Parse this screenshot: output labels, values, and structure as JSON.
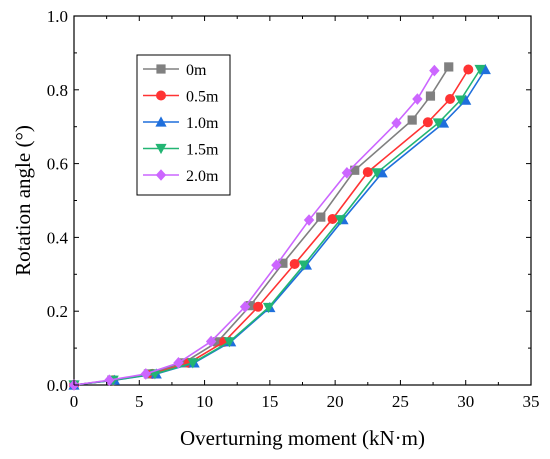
{
  "chart_data": {
    "type": "line",
    "title": "",
    "xlabel": "Overturning moment (kN·m)",
    "ylabel": "Rotation angle (°)",
    "xlim": [
      0,
      35
    ],
    "ylim": [
      0,
      1.0
    ],
    "xticks": [
      0,
      5,
      10,
      15,
      20,
      25,
      30,
      35
    ],
    "yticks": [
      0.0,
      0.2,
      0.4,
      0.6,
      0.8,
      1.0
    ],
    "xtick_labels": [
      "0",
      "5",
      "10",
      "15",
      "20",
      "25",
      "30",
      "35"
    ],
    "ytick_labels": [
      "0.0",
      "0.2",
      "0.4",
      "0.6",
      "0.8",
      "1.0"
    ],
    "grid": false,
    "legend_position": "top-left",
    "series": [
      {
        "name": "0m",
        "color": "#808080",
        "marker": "square",
        "x": [
          0,
          2.9,
          5.7,
          8.4,
          11.0,
          13.5,
          16.0,
          18.9,
          21.5,
          25.9,
          27.3,
          28.7
        ],
        "y": [
          0.0,
          0.013,
          0.03,
          0.06,
          0.117,
          0.215,
          0.33,
          0.455,
          0.582,
          0.718,
          0.783,
          0.862
        ]
      },
      {
        "name": "0.5m",
        "color": "#ff3333",
        "marker": "circle",
        "x": [
          0,
          3.0,
          6.0,
          8.8,
          11.5,
          14.1,
          16.9,
          19.8,
          22.5,
          27.1,
          28.8,
          30.2
        ],
        "y": [
          0.0,
          0.013,
          0.03,
          0.06,
          0.117,
          0.212,
          0.328,
          0.45,
          0.577,
          0.712,
          0.775,
          0.855
        ]
      },
      {
        "name": "1.0m",
        "color": "#1f6fdc",
        "marker": "triangle-up",
        "x": [
          0,
          3.1,
          6.3,
          9.2,
          12.0,
          15.0,
          17.8,
          20.6,
          23.6,
          28.3,
          30.0,
          31.5
        ],
        "y": [
          0.0,
          0.013,
          0.03,
          0.06,
          0.117,
          0.21,
          0.325,
          0.448,
          0.575,
          0.71,
          0.772,
          0.855
        ]
      },
      {
        "name": "1.5m",
        "color": "#22b573",
        "marker": "triangle-down",
        "x": [
          0,
          3.0,
          6.2,
          9.1,
          11.9,
          14.9,
          17.6,
          20.4,
          23.2,
          27.9,
          29.6,
          31.1
        ],
        "y": [
          0.0,
          0.013,
          0.03,
          0.06,
          0.117,
          0.21,
          0.325,
          0.448,
          0.575,
          0.71,
          0.772,
          0.855
        ]
      },
      {
        "name": "2.0m",
        "color": "#cc66ff",
        "marker": "diamond",
        "x": [
          0,
          2.7,
          5.5,
          8.0,
          10.5,
          13.1,
          15.5,
          18.0,
          20.9,
          24.7,
          26.3,
          27.6
        ],
        "y": [
          0.0,
          0.013,
          0.03,
          0.06,
          0.118,
          0.212,
          0.325,
          0.447,
          0.575,
          0.71,
          0.775,
          0.852
        ]
      }
    ]
  }
}
